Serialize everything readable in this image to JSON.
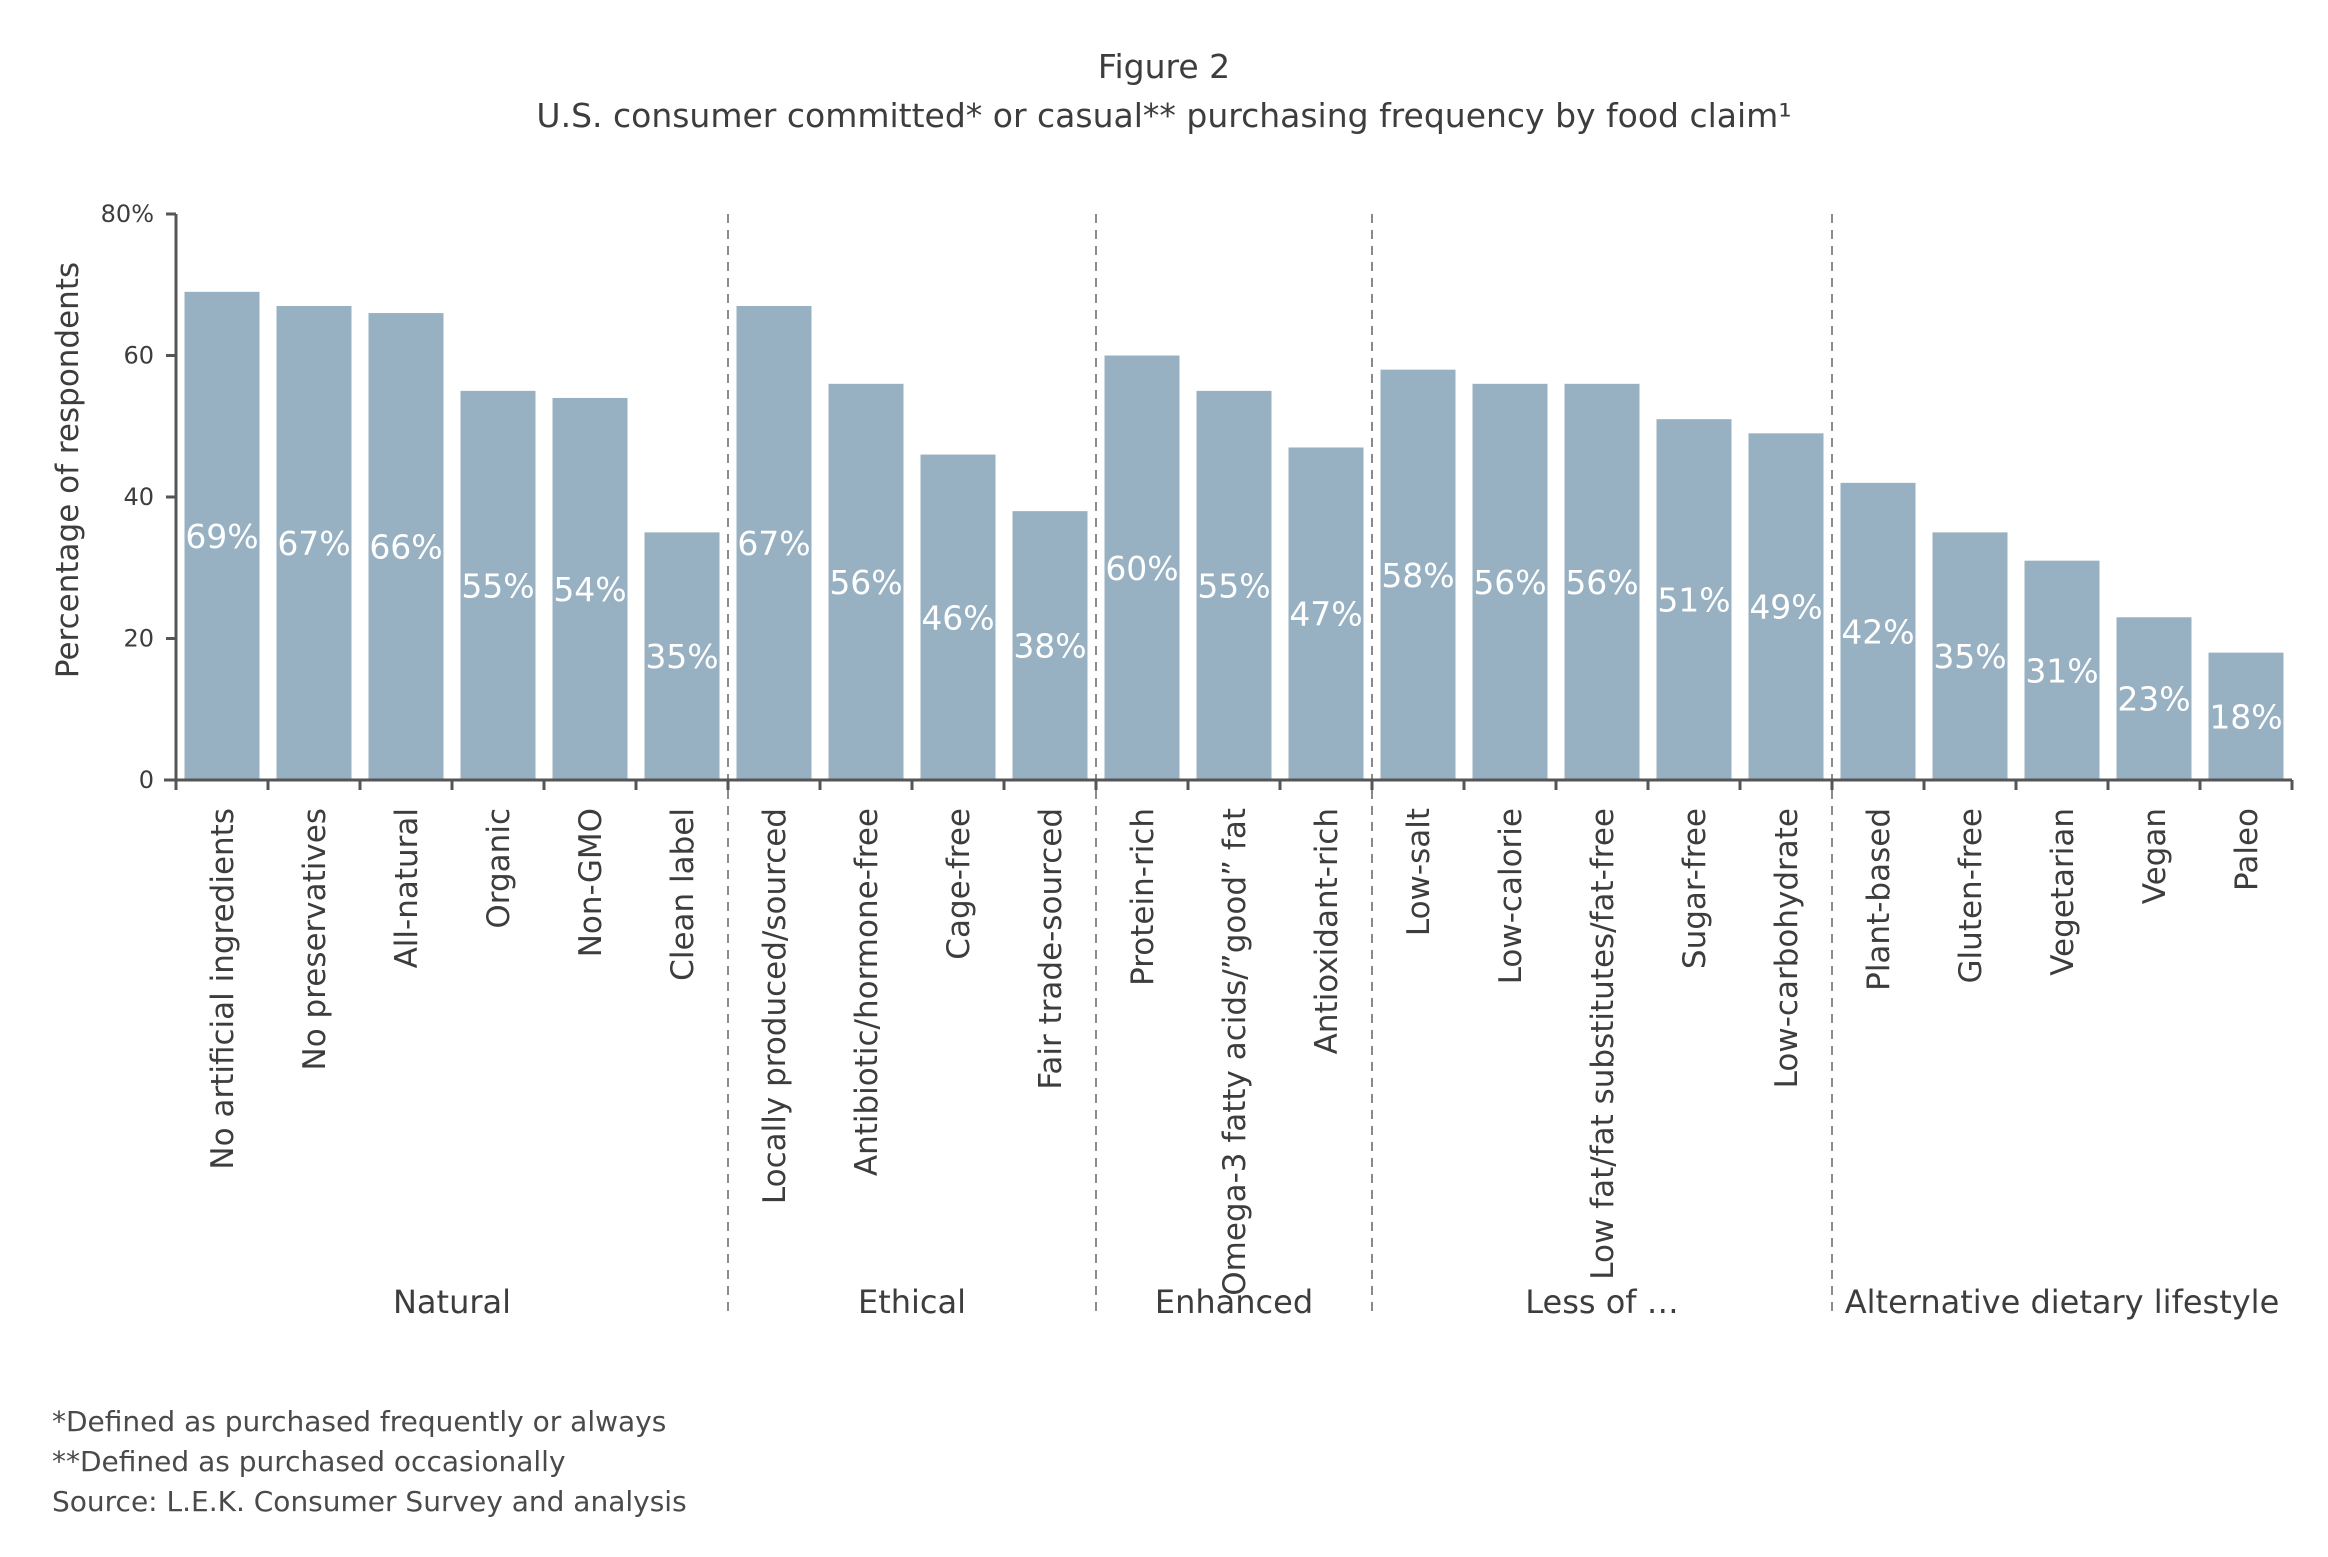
{
  "figure": {
    "number": "Figure 2",
    "subtitle": "U.S. consumer committed* or casual** purchasing frequency by food claim¹"
  },
  "chart_data": {
    "type": "bar",
    "ylabel": "Percentage of respondents",
    "ylim": [
      0,
      80
    ],
    "yticks": [
      "0",
      "20",
      "40",
      "60",
      "80%"
    ],
    "grid": false,
    "colors": {
      "bar": "#97b1c2",
      "label": "#ffffff",
      "axis": "#555555",
      "separator": "#8a8a8a",
      "text": "#3d3d3d"
    },
    "categories": [
      "No artificial ingredients",
      "No preservatives",
      "All-natural",
      "Organic",
      "Non-GMO",
      "Clean label",
      "Locally produced/sourced",
      "Antibiotic/hormone-free",
      "Cage-free",
      "Fair trade-sourced",
      "Protein-rich",
      "Omega-3 fatty acids/”good” fat",
      "Antioxidant-rich",
      "Low-salt",
      "Low-calorie",
      "Low fat/fat substitutes/fat-free",
      "Sugar-free",
      "Low-carbohydrate",
      "Plant-based",
      "Gluten-free",
      "Vegetarian",
      "Vegan",
      "Paleo"
    ],
    "values": [
      69,
      67,
      66,
      55,
      54,
      35,
      67,
      56,
      46,
      38,
      60,
      55,
      47,
      58,
      56,
      56,
      51,
      49,
      42,
      35,
      31,
      23,
      18
    ],
    "data_labels": [
      "69%",
      "67%",
      "66%",
      "55%",
      "54%",
      "35%",
      "67%",
      "56%",
      "46%",
      "38%",
      "60%",
      "55%",
      "47%",
      "58%",
      "56%",
      "56%",
      "51%",
      "49%",
      "42%",
      "35%",
      "31%",
      "23%",
      "18%"
    ],
    "groups": [
      {
        "name": "Natural",
        "count": 6
      },
      {
        "name": "Ethical",
        "count": 4
      },
      {
        "name": "Enhanced",
        "count": 3
      },
      {
        "name": "Less of …",
        "count": 5
      },
      {
        "name": "Alternative dietary lifestyle",
        "count": 5
      }
    ]
  },
  "notes": {
    "note1": "*Defined as purchased frequently or always",
    "note2": "**Defined as purchased occasionally",
    "source": "Source: L.E.K. Consumer Survey and analysis"
  }
}
